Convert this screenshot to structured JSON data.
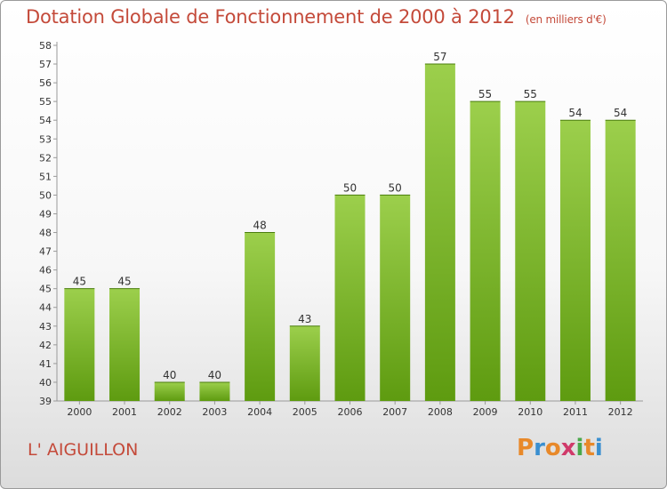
{
  "header": {
    "title": "Dotation Globale de Fonctionnement de 2000 à 2012",
    "unit": "(en milliers d'€)"
  },
  "footer": {
    "commune": "L' AIGUILLON",
    "logo_text": "Proxiti"
  },
  "colors": {
    "title": "#c44a3a",
    "bar_top": "#9ccf4c",
    "bar_bottom": "#5e9b10",
    "logo": [
      "#e8892a",
      "#3a8fd0",
      "#e8892a",
      "#d03a6a",
      "#4aa84a",
      "#e8892a",
      "#3a8fd0"
    ]
  },
  "chart_data": {
    "type": "bar",
    "title": "Dotation Globale de Fonctionnement de 2000 à 2012",
    "subtitle": "(en milliers d'€)",
    "categories": [
      "2000",
      "2001",
      "2002",
      "2003",
      "2004",
      "2005",
      "2006",
      "2007",
      "2008",
      "2009",
      "2010",
      "2011",
      "2012"
    ],
    "values": [
      45,
      45,
      40,
      40,
      48,
      43,
      50,
      50,
      57,
      55,
      55,
      54,
      54
    ],
    "value_labels": [
      "45",
      "45",
      "40",
      "40",
      "48",
      "43",
      "50",
      "50",
      "57",
      "55",
      "55",
      "54",
      "54"
    ],
    "y_ticks": [
      "39",
      "40",
      "41",
      "42",
      "43",
      "44",
      "45",
      "46",
      "47",
      "48",
      "49",
      "50",
      "51",
      "52",
      "53",
      "54",
      "55",
      "56",
      "57",
      "58"
    ],
    "ylim": [
      39,
      58
    ],
    "grid": false,
    "legend": "none"
  }
}
